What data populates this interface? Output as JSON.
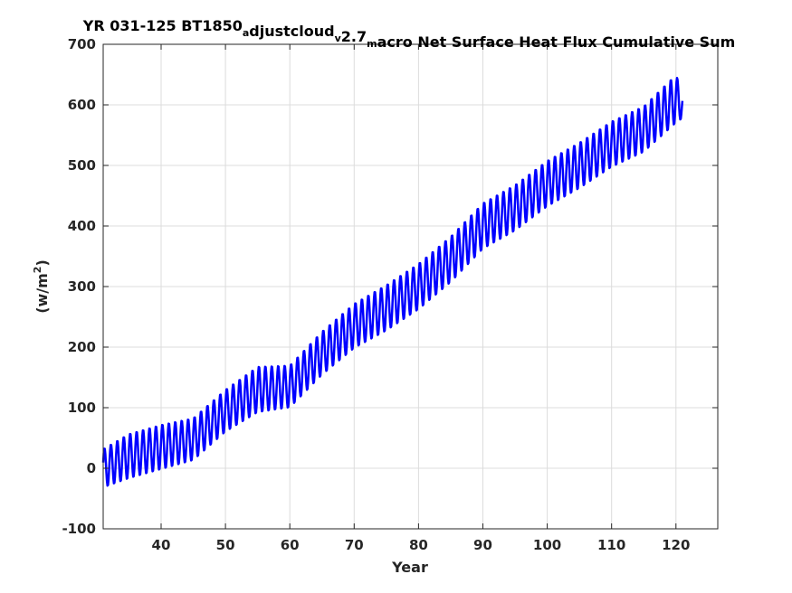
{
  "chart_data": {
    "type": "line",
    "title_parts": [
      {
        "text": "YR 031-125 BT1850",
        "sub": false
      },
      {
        "text": "a",
        "sub": true
      },
      {
        "text": "djustcloud",
        "sub": false
      },
      {
        "text": "v",
        "sub": true
      },
      {
        "text": "2.7",
        "sub": false
      },
      {
        "text": "m",
        "sub": true
      },
      {
        "text": "acro Net Surface Heat Flux  Cumulative Sum",
        "sub": false
      }
    ],
    "xlabel": "Year",
    "ylabel_main": "(w/m",
    "ylabel_sup": "2",
    "ylabel_close": ")",
    "xlim": [
      31,
      126.5
    ],
    "ylim": [
      -100,
      700
    ],
    "xticks": [
      "40",
      "50",
      "60",
      "70",
      "80",
      "90",
      "100",
      "110",
      "120"
    ],
    "xtick_values": [
      40,
      50,
      60,
      70,
      80,
      90,
      100,
      110,
      120
    ],
    "yticks": [
      "-100",
      "0",
      "100",
      "200",
      "300",
      "400",
      "500",
      "600",
      "700"
    ],
    "ytick_values": [
      -100,
      0,
      100,
      200,
      300,
      400,
      500,
      600,
      700
    ],
    "grid": true,
    "series": [
      {
        "color": "#0000ff",
        "line_width": 2.5,
        "x_start": 31,
        "x_end": 121,
        "samples_per_year": 12,
        "trend_x": [
          31,
          35,
          40,
          45,
          50,
          55,
          60,
          65,
          70,
          75,
          80,
          85,
          90,
          95,
          100,
          105,
          110,
          115,
          120,
          121
        ],
        "trend_y": [
          0,
          20,
          35,
          48,
          95,
          130,
          135,
          190,
          235,
          265,
          300,
          345,
          400,
          430,
          470,
          500,
          535,
          560,
          610,
          600
        ],
        "seasonal_amplitude": [
          32,
          37,
          37,
          35,
          35,
          38,
          35,
          36,
          37,
          38,
          38,
          38,
          38,
          38,
          38,
          38,
          38,
          38,
          40,
          22
        ]
      }
    ]
  }
}
